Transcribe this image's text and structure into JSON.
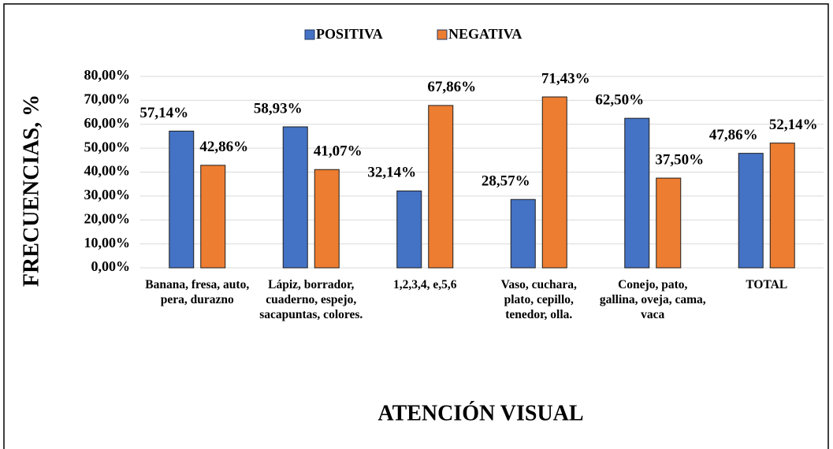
{
  "chart_data": {
    "type": "bar",
    "x_label": "ATENCIÓN VISUAL",
    "y_label": "FRECUENCIAS, %",
    "categories": [
      "Banana, fresa, auto, pera, durazno",
      "Lápiz, borrador, cuaderno, espejo, sacapuntas, colores.",
      "1,2,3,4, e,5,6",
      "Vaso, cuchara, plato, cepillo, tenedor, olla.",
      "Conejo, pato, gallina, oveja, cama, vaca",
      "TOTAL"
    ],
    "series": [
      {
        "name": "POSITIVA",
        "color": "#4472c4",
        "values": [
          57.14,
          58.93,
          32.14,
          28.57,
          62.5,
          47.86
        ],
        "value_labels": [
          "57,14%",
          "58,93%",
          "32,14%",
          "28,57%",
          "62,50%",
          "47,86%"
        ]
      },
      {
        "name": "NEGATIVA",
        "color": "#ed7d31",
        "values": [
          42.86,
          41.07,
          67.86,
          71.43,
          37.5,
          52.14
        ],
        "value_labels": [
          "42,86%",
          "41,07%",
          "67,86%",
          "71,43%",
          "37,50%",
          "52,14%"
        ]
      }
    ],
    "ylim": [
      0,
      80
    ],
    "yticks": [
      {
        "value": 0,
        "label": "0,00%"
      },
      {
        "value": 10,
        "label": "10,00%"
      },
      {
        "value": 20,
        "label": "20,00%"
      },
      {
        "value": 30,
        "label": "30,00%"
      },
      {
        "value": 40,
        "label": "40,00%"
      },
      {
        "value": 50,
        "label": "50,00%"
      },
      {
        "value": 60,
        "label": "60,00%"
      },
      {
        "value": 70,
        "label": "70,00%"
      },
      {
        "value": 80,
        "label": "80,00%"
      }
    ],
    "grid": true,
    "legend": "top"
  }
}
